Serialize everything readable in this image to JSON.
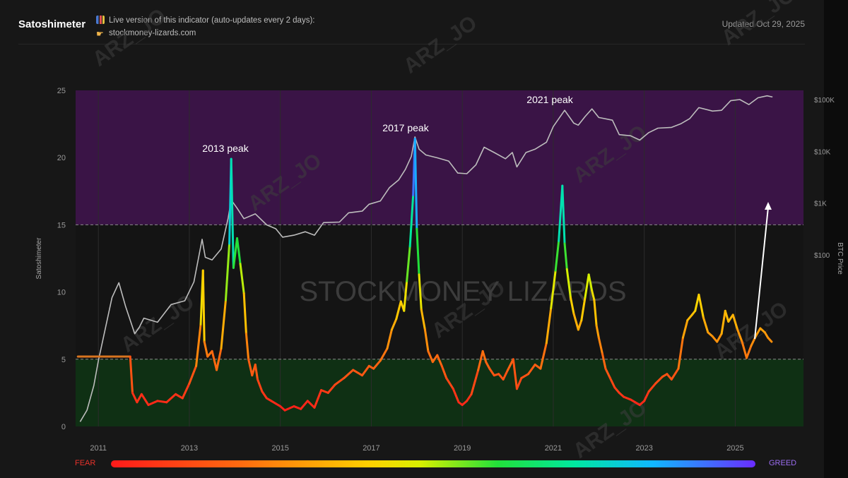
{
  "header": {
    "title": "Satoshimeter",
    "live_line": "Live version of this indicator (auto-updates every 2 days):",
    "source_line": "stockmoney-lizards.com",
    "updated": "Updated Oct 29, 2025",
    "icons": [
      "bar-chart-icon",
      "pointing-hand-icon"
    ]
  },
  "legend_bar": {
    "fear": "FEAR",
    "greed": "GREED",
    "colors": [
      "#ff1a1a",
      "#ff6a10",
      "#ffd000",
      "#22e03a",
      "#00e8a0",
      "#10b8ff",
      "#6a2cff"
    ]
  },
  "watermarks": {
    "center": "STOCKMONEY LIZARDS",
    "diagonal": "ARZ_JO"
  },
  "chart_data": {
    "type": "line",
    "ylabel_left": "Satoshimeter",
    "ylabel_right": "BTC Price",
    "ylim": [
      0,
      25
    ],
    "y_ticks": [
      "0",
      "5",
      "10",
      "15",
      "20",
      "25"
    ],
    "right_ticks": [
      {
        "label": "$100K",
        "value": 100000
      },
      {
        "label": "$10K",
        "value": 10000
      },
      {
        "label": "$1K",
        "value": 1000
      },
      {
        "label": "$100",
        "value": 100
      }
    ],
    "xlim": [
      2010.5,
      2026.5
    ],
    "x_ticks": [
      "2011",
      "2013",
      "2015",
      "2017",
      "2019",
      "2021",
      "2023",
      "2025"
    ],
    "zones": [
      {
        "name": "greed zone",
        "from": 15,
        "to": 25,
        "color": "#3a1446"
      },
      {
        "name": "fear zone",
        "from": 0,
        "to": 5,
        "color": "#0f3014"
      }
    ],
    "thresholds": [
      15,
      5
    ],
    "annotations": [
      {
        "text": "2013 peak",
        "x": 2013.9,
        "y": 19.9
      },
      {
        "text": "2017 peak",
        "x": 2017.95,
        "y": 21.4
      },
      {
        "text": "2021 peak",
        "x": 2021.3,
        "y": 24.0
      }
    ],
    "series": [
      {
        "name": "Satoshimeter",
        "color_scale": "fear-to-greed",
        "points": [
          [
            2010.55,
            5.2
          ],
          [
            2011.7,
            5.2
          ],
          [
            2011.75,
            2.5
          ],
          [
            2011.85,
            1.8
          ],
          [
            2011.95,
            2.4
          ],
          [
            2012.1,
            1.6
          ],
          [
            2012.3,
            1.9
          ],
          [
            2012.5,
            1.8
          ],
          [
            2012.7,
            2.4
          ],
          [
            2012.85,
            2.1
          ],
          [
            2013.0,
            3.2
          ],
          [
            2013.15,
            4.5
          ],
          [
            2013.25,
            7.6
          ],
          [
            2013.3,
            11.6
          ],
          [
            2013.33,
            6.3
          ],
          [
            2013.4,
            5.2
          ],
          [
            2013.5,
            5.6
          ],
          [
            2013.6,
            4.2
          ],
          [
            2013.7,
            5.8
          ],
          [
            2013.8,
            9.4
          ],
          [
            2013.88,
            13.6
          ],
          [
            2013.92,
            19.9
          ],
          [
            2013.97,
            11.8
          ],
          [
            2014.05,
            14.0
          ],
          [
            2014.12,
            12.1
          ],
          [
            2014.2,
            9.9
          ],
          [
            2014.25,
            6.9
          ],
          [
            2014.3,
            5.0
          ],
          [
            2014.38,
            3.8
          ],
          [
            2014.45,
            4.6
          ],
          [
            2014.5,
            3.5
          ],
          [
            2014.6,
            2.6
          ],
          [
            2014.7,
            2.1
          ],
          [
            2014.8,
            1.9
          ],
          [
            2014.9,
            1.7
          ],
          [
            2015.0,
            1.5
          ],
          [
            2015.1,
            1.2
          ],
          [
            2015.3,
            1.5
          ],
          [
            2015.45,
            1.3
          ],
          [
            2015.6,
            1.9
          ],
          [
            2015.75,
            1.4
          ],
          [
            2015.9,
            2.7
          ],
          [
            2016.05,
            2.5
          ],
          [
            2016.2,
            3.1
          ],
          [
            2016.4,
            3.6
          ],
          [
            2016.6,
            4.2
          ],
          [
            2016.8,
            3.8
          ],
          [
            2016.95,
            4.5
          ],
          [
            2017.05,
            4.3
          ],
          [
            2017.2,
            4.9
          ],
          [
            2017.35,
            5.8
          ],
          [
            2017.45,
            7.2
          ],
          [
            2017.55,
            8.0
          ],
          [
            2017.65,
            9.3
          ],
          [
            2017.72,
            8.6
          ],
          [
            2017.78,
            10.8
          ],
          [
            2017.85,
            13.4
          ],
          [
            2017.92,
            17.2
          ],
          [
            2017.96,
            21.4
          ],
          [
            2018.0,
            14.7
          ],
          [
            2018.05,
            11.3
          ],
          [
            2018.1,
            8.7
          ],
          [
            2018.18,
            7.2
          ],
          [
            2018.25,
            5.6
          ],
          [
            2018.35,
            4.8
          ],
          [
            2018.45,
            5.3
          ],
          [
            2018.55,
            4.5
          ],
          [
            2018.65,
            3.6
          ],
          [
            2018.8,
            2.8
          ],
          [
            2018.92,
            1.8
          ],
          [
            2019.0,
            1.6
          ],
          [
            2019.1,
            1.9
          ],
          [
            2019.2,
            2.4
          ],
          [
            2019.35,
            4.2
          ],
          [
            2019.45,
            5.6
          ],
          [
            2019.52,
            4.8
          ],
          [
            2019.6,
            4.3
          ],
          [
            2019.7,
            3.8
          ],
          [
            2019.8,
            3.9
          ],
          [
            2019.9,
            3.5
          ],
          [
            2020.0,
            4.2
          ],
          [
            2020.12,
            5.0
          ],
          [
            2020.2,
            2.8
          ],
          [
            2020.3,
            3.6
          ],
          [
            2020.45,
            3.9
          ],
          [
            2020.6,
            4.6
          ],
          [
            2020.72,
            4.3
          ],
          [
            2020.85,
            6.2
          ],
          [
            2020.95,
            8.8
          ],
          [
            2021.05,
            11.6
          ],
          [
            2021.12,
            13.8
          ],
          [
            2021.2,
            17.9
          ],
          [
            2021.25,
            13.6
          ],
          [
            2021.3,
            11.7
          ],
          [
            2021.38,
            9.6
          ],
          [
            2021.45,
            8.4
          ],
          [
            2021.55,
            7.2
          ],
          [
            2021.62,
            7.9
          ],
          [
            2021.7,
            9.6
          ],
          [
            2021.78,
            11.3
          ],
          [
            2021.85,
            10.1
          ],
          [
            2021.9,
            9.4
          ],
          [
            2021.95,
            7.5
          ],
          [
            2022.0,
            6.6
          ],
          [
            2022.08,
            5.4
          ],
          [
            2022.15,
            4.3
          ],
          [
            2022.25,
            3.6
          ],
          [
            2022.35,
            2.9
          ],
          [
            2022.45,
            2.5
          ],
          [
            2022.55,
            2.2
          ],
          [
            2022.7,
            2.0
          ],
          [
            2022.8,
            1.8
          ],
          [
            2022.9,
            1.6
          ],
          [
            2023.0,
            1.9
          ],
          [
            2023.1,
            2.6
          ],
          [
            2023.25,
            3.2
          ],
          [
            2023.4,
            3.7
          ],
          [
            2023.5,
            3.9
          ],
          [
            2023.6,
            3.5
          ],
          [
            2023.75,
            4.3
          ],
          [
            2023.85,
            6.6
          ],
          [
            2023.95,
            7.9
          ],
          [
            2024.05,
            8.3
          ],
          [
            2024.12,
            8.6
          ],
          [
            2024.2,
            9.8
          ],
          [
            2024.3,
            8.1
          ],
          [
            2024.4,
            7.0
          ],
          [
            2024.5,
            6.7
          ],
          [
            2024.6,
            6.3
          ],
          [
            2024.7,
            6.9
          ],
          [
            2024.78,
            8.6
          ],
          [
            2024.85,
            7.8
          ],
          [
            2024.95,
            8.3
          ],
          [
            2025.05,
            7.2
          ],
          [
            2025.15,
            6.3
          ],
          [
            2025.25,
            5.1
          ],
          [
            2025.35,
            6.0
          ],
          [
            2025.45,
            6.7
          ],
          [
            2025.55,
            7.3
          ],
          [
            2025.65,
            7.0
          ],
          [
            2025.72,
            6.6
          ],
          [
            2025.8,
            6.3
          ]
        ]
      },
      {
        "name": "BTC Price",
        "color": "#bdbdbd",
        "points": [
          [
            2010.6,
            0.06
          ],
          [
            2010.75,
            0.1
          ],
          [
            2010.9,
            0.3
          ],
          [
            2011.0,
            0.9
          ],
          [
            2011.3,
            15
          ],
          [
            2011.45,
            29
          ],
          [
            2011.6,
            10
          ],
          [
            2011.8,
            3
          ],
          [
            2011.9,
            4
          ],
          [
            2012.0,
            6
          ],
          [
            2012.3,
            5
          ],
          [
            2012.6,
            11
          ],
          [
            2012.9,
            13
          ],
          [
            2013.1,
            30
          ],
          [
            2013.28,
            200
          ],
          [
            2013.35,
            90
          ],
          [
            2013.5,
            80
          ],
          [
            2013.7,
            130
          ],
          [
            2013.85,
            500
          ],
          [
            2013.92,
            1150
          ],
          [
            2014.05,
            800
          ],
          [
            2014.2,
            500
          ],
          [
            2014.45,
            620
          ],
          [
            2014.7,
            380
          ],
          [
            2014.9,
            320
          ],
          [
            2015.05,
            220
          ],
          [
            2015.3,
            240
          ],
          [
            2015.55,
            280
          ],
          [
            2015.75,
            240
          ],
          [
            2015.95,
            420
          ],
          [
            2016.3,
            430
          ],
          [
            2016.5,
            650
          ],
          [
            2016.8,
            700
          ],
          [
            2016.95,
            950
          ],
          [
            2017.2,
            1100
          ],
          [
            2017.4,
            2000
          ],
          [
            2017.6,
            2800
          ],
          [
            2017.75,
            4500
          ],
          [
            2017.88,
            8000
          ],
          [
            2017.96,
            19000
          ],
          [
            2018.05,
            11000
          ],
          [
            2018.2,
            8500
          ],
          [
            2018.45,
            7500
          ],
          [
            2018.7,
            6500
          ],
          [
            2018.9,
            3800
          ],
          [
            2019.1,
            3700
          ],
          [
            2019.3,
            5500
          ],
          [
            2019.48,
            12000
          ],
          [
            2019.7,
            9500
          ],
          [
            2019.95,
            7200
          ],
          [
            2020.1,
            9500
          ],
          [
            2020.2,
            5000
          ],
          [
            2020.4,
            9500
          ],
          [
            2020.6,
            11000
          ],
          [
            2020.85,
            15000
          ],
          [
            2021.0,
            30000
          ],
          [
            2021.25,
            62000
          ],
          [
            2021.45,
            35000
          ],
          [
            2021.55,
            32000
          ],
          [
            2021.7,
            47000
          ],
          [
            2021.85,
            66000
          ],
          [
            2022.0,
            45000
          ],
          [
            2022.3,
            40000
          ],
          [
            2022.45,
            21000
          ],
          [
            2022.7,
            20000
          ],
          [
            2022.9,
            16500
          ],
          [
            2023.1,
            23000
          ],
          [
            2023.3,
            28000
          ],
          [
            2023.6,
            29000
          ],
          [
            2023.8,
            34000
          ],
          [
            2024.0,
            43000
          ],
          [
            2024.2,
            70000
          ],
          [
            2024.5,
            60000
          ],
          [
            2024.7,
            62000
          ],
          [
            2024.9,
            95000
          ],
          [
            2025.1,
            100000
          ],
          [
            2025.3,
            80000
          ],
          [
            2025.5,
            108000
          ],
          [
            2025.7,
            118000
          ],
          [
            2025.82,
            112000
          ]
        ]
      }
    ]
  }
}
